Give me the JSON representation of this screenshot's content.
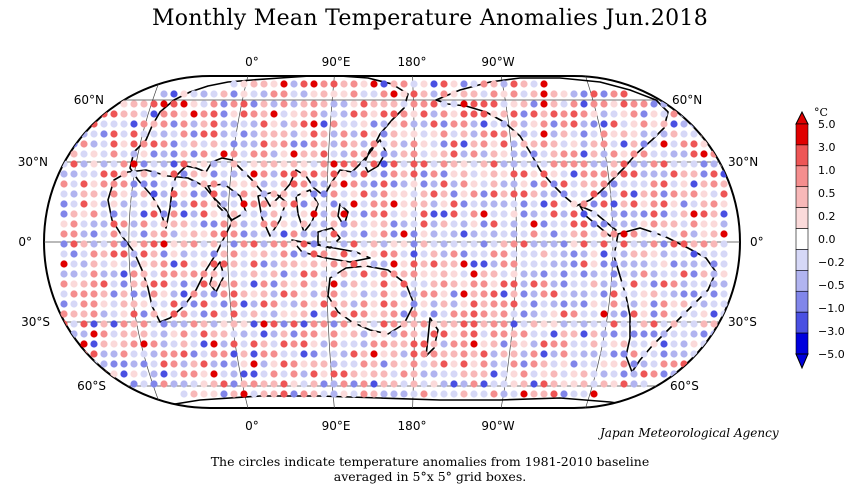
{
  "title": "Monthly Mean Temperature Anomalies Jun.2018",
  "agency": "Japan Meteorological Agency",
  "caption": {
    "line1": "The circles indicate temperature anomalies from 1981-2010 baseline",
    "line2": "averaged in 5°x 5° grid boxes."
  },
  "longitude_labels": [
    "0°",
    "90°E",
    "180°",
    "90°W"
  ],
  "latitude_labels_left": [
    "60°N",
    "30°N",
    "0°",
    "30°S",
    "60°S"
  ],
  "latitude_labels_right": [
    "60°N",
    "30°N",
    "0°",
    "30°S",
    "60°S"
  ],
  "colorbar": {
    "unit": "°C",
    "ticks": [
      "5.0",
      "3.0",
      "1.0",
      "0.5",
      "0.2",
      "0.0",
      "−0.2",
      "−0.5",
      "−1.0",
      "−3.0",
      "−5.0"
    ],
    "colors": [
      "#e00000",
      "#ee5656",
      "#f58e8e",
      "#f8b8b8",
      "#fbdada",
      "#ffffff",
      "#d6d8f7",
      "#b1b4f0",
      "#8186ea",
      "#4a50e2",
      "#0000dd"
    ]
  }
}
